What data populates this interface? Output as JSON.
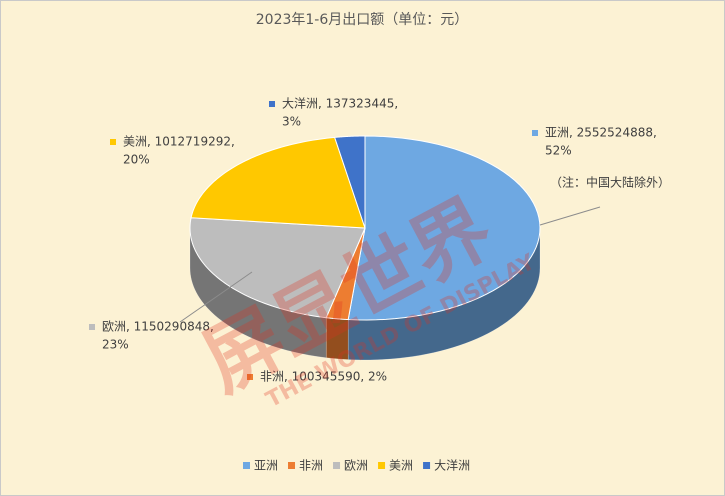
{
  "chart_data": {
    "type": "pie",
    "title": "2023年1-6月出口额（单位：元）",
    "categories": [
      "亚洲",
      "非洲",
      "欧洲",
      "美洲",
      "大洋洲"
    ],
    "values": [
      2552524888,
      100345590,
      1150290848,
      1012719292,
      137323445
    ],
    "value_labels": [
      [
        "亚洲, 2552524888,",
        "52%"
      ],
      [
        "非洲, 100345590, 2%"
      ],
      [
        "欧洲, 1150290848,",
        "23%"
      ],
      [
        "美洲, 1012719292,",
        "20%"
      ],
      [
        "大洋洲, 137323445,",
        "3%"
      ]
    ],
    "colors": [
      "#6ea8e2",
      "#ed7d31",
      "#bdbdbd",
      "#ffc800",
      "#3f73c9"
    ],
    "annotation": "（注：中国大陆除外）",
    "legend": "bottom",
    "watermark": {
      "main": "屏显世界",
      "sub": "THE WORLD OF DISPLAY"
    }
  }
}
